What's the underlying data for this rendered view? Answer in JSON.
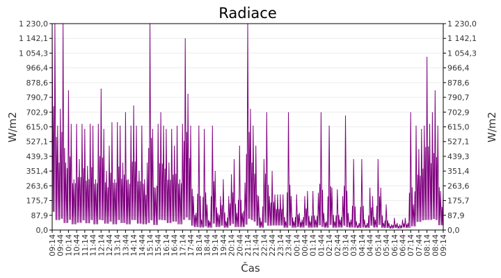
{
  "chart_data": {
    "type": "line",
    "title": "Radiace",
    "xlabel": "Čas",
    "ylabel": "W/m2",
    "ylabel_right": "W/m2",
    "ylim": [
      0,
      1230
    ],
    "y_ticks": [
      "0,0",
      "87,9",
      "175,7",
      "263,6",
      "351,4",
      "439,3",
      "527,1",
      "615,0",
      "702,9",
      "790,7",
      "878,6",
      "966,4",
      "1 054,3",
      "1 142,1",
      "1 230,0"
    ],
    "x_ticks": [
      "09:14",
      "09:44",
      "10:14",
      "10:44",
      "11:14",
      "11:44",
      "12:14",
      "12:44",
      "13:14",
      "13:44",
      "14:14",
      "14:44",
      "15:14",
      "15:44",
      "16:14",
      "16:44",
      "17:14",
      "17:44",
      "18:14",
      "18:44",
      "19:14",
      "19:44",
      "20:14",
      "20:44",
      "21:14",
      "21:44",
      "22:14",
      "22:44",
      "23:14",
      "23:44",
      "00:14",
      "00:44",
      "01:14",
      "01:44",
      "02:14",
      "02:44",
      "03:14",
      "03:44",
      "04:14",
      "04:44",
      "05:14",
      "05:44",
      "06:14",
      "06:44",
      "07:14",
      "07:44",
      "08:14",
      "08:44",
      "09:14"
    ],
    "x_step_minutes": 10,
    "grid": true,
    "line_color": "#800080",
    "series": [
      {
        "values": [
          1230,
          1230,
          620,
          720,
          1230,
          400,
          830,
          630,
          300,
          630,
          420,
          630,
          600,
          380,
          630,
          620,
          300,
          630,
          840,
          600,
          350,
          500,
          640,
          300,
          640,
          620,
          400,
          700,
          300,
          620,
          740,
          620,
          350,
          620,
          300,
          400,
          1230,
          600,
          250,
          630,
          700,
          620,
          600,
          400,
          600,
          500,
          620,
          300,
          630,
          1140,
          810,
          620,
          200,
          100,
          620,
          60,
          600,
          150,
          50,
          620,
          350,
          100,
          200,
          300,
          50,
          200,
          330,
          420,
          100,
          500,
          100,
          280,
          1230,
          720,
          620,
          500,
          200,
          50,
          420,
          700,
          200,
          350,
          210,
          210,
          210,
          210,
          50,
          700,
          200,
          50,
          210,
          100,
          60,
          200,
          230,
          50,
          230,
          60,
          220,
          700,
          100,
          50,
          620,
          250,
          50,
          240,
          60,
          200,
          680,
          100,
          60,
          420,
          50,
          40,
          420,
          60,
          40,
          250,
          200,
          60,
          420,
          250,
          40,
          150,
          40,
          30,
          70,
          40,
          30,
          60,
          70,
          40,
          700,
          150,
          620,
          480,
          600,
          620,
          1030,
          630,
          700,
          830,
          620,
          230,
          230
        ]
      }
    ]
  }
}
